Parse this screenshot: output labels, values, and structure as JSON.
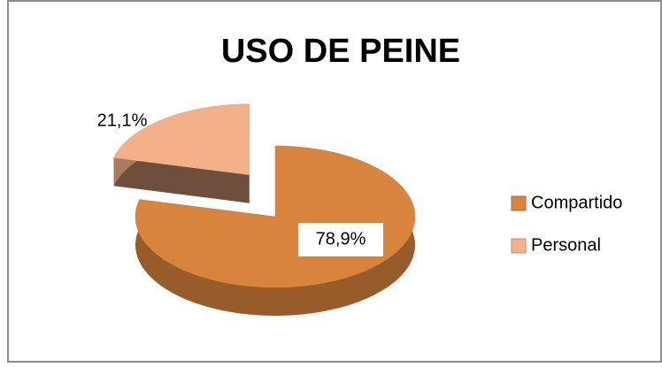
{
  "chart_data": {
    "type": "pie",
    "title": "USO DE PEINE",
    "categories": [
      "Compartido",
      "Personal"
    ],
    "values": [
      78.9,
      21.1
    ],
    "value_labels": [
      "78,9%",
      "21,1%"
    ],
    "colors": [
      "#d9843d",
      "#f4b088"
    ],
    "exploded": [
      false,
      true
    ],
    "legend": "right"
  }
}
